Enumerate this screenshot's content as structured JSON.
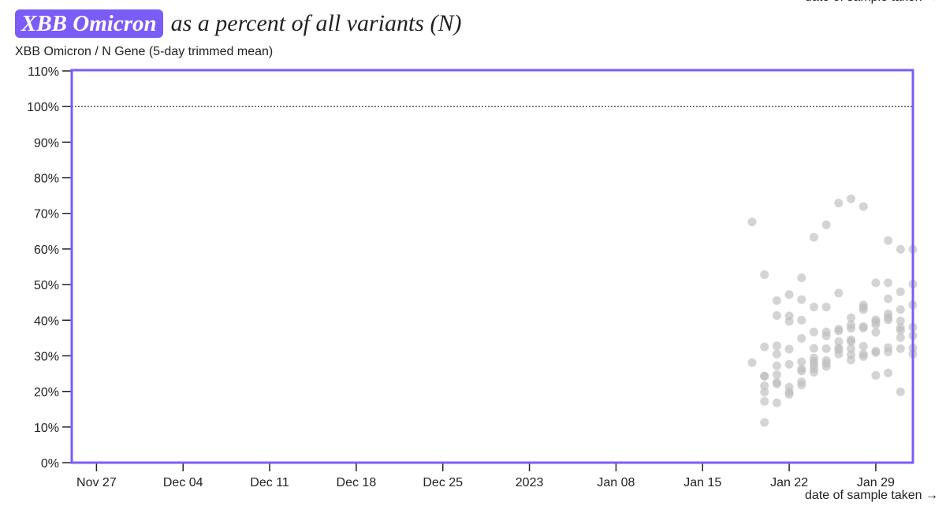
{
  "header": {
    "badge": "XBB Omicron",
    "title_rest": "as a percent of all variants (N)",
    "subtitle": "XBB Omicron / N Gene (5-day trimmed mean)"
  },
  "colors": {
    "accent": "#7c5cf6",
    "points": "#bdbdbd"
  },
  "chart_data": {
    "type": "scatter",
    "title": "XBB Omicron as a percent of all variants (N)",
    "ylabel": "XBB Omicron / N Gene (5-day trimmed mean)",
    "xlabel": "date of sample taken →",
    "ylim": [
      0,
      110
    ],
    "xlim": [
      "2022-11-25",
      "2023-02-01"
    ],
    "yticks": [
      0,
      10,
      20,
      30,
      40,
      50,
      60,
      70,
      80,
      90,
      100,
      110
    ],
    "ytick_labels": [
      "0%",
      "10%",
      "20%",
      "30%",
      "40%",
      "50%",
      "60%",
      "70%",
      "80%",
      "90%",
      "100%",
      "110%"
    ],
    "xticks": [
      "2022-11-27",
      "2022-12-04",
      "2022-12-11",
      "2022-12-18",
      "2022-12-25",
      "2023-01-01",
      "2023-01-08",
      "2023-01-15",
      "2023-01-22",
      "2023-01-29"
    ],
    "xtick_labels": [
      "Nov 27",
      "Dec 04",
      "Dec 11",
      "Dec 18",
      "Dec 25",
      "2023",
      "Jan 08",
      "Jan 15",
      "Jan 22",
      "Jan 29"
    ],
    "reference_line": {
      "y": 100,
      "style": "dotted"
    },
    "grid": false,
    "points": [
      {
        "x": "2023-01-19",
        "y": [
          67.6,
          28.1
        ]
      },
      {
        "x": "2023-01-20",
        "y": [
          52.8,
          32.5,
          24.3,
          24.3,
          21.6,
          19.8,
          17.2,
          11.3
        ]
      },
      {
        "x": "2023-01-21",
        "y": [
          45.5,
          41.3,
          32.8,
          30.5,
          27.2,
          24.7,
          22.5,
          22.1,
          16.8
        ]
      },
      {
        "x": "2023-01-22",
        "y": [
          47.2,
          41.2,
          39.7,
          31.9,
          27.6,
          21.2,
          19.8,
          19.2
        ]
      },
      {
        "x": "2023-01-23",
        "y": [
          51.9,
          45.8,
          40.0,
          34.9,
          28.3,
          26.3,
          25.7,
          22.7,
          21.8
        ]
      },
      {
        "x": "2023-01-24",
        "y": [
          63.3,
          43.7,
          36.7,
          32.1,
          29.4,
          28.4,
          27.5,
          26.4,
          25.4
        ]
      },
      {
        "x": "2023-01-25",
        "y": [
          66.8,
          43.7,
          36.7,
          35.6,
          32.0,
          28.7,
          27.9,
          27.0
        ]
      },
      {
        "x": "2023-01-26",
        "y": [
          72.9,
          47.6,
          37.5,
          37.0,
          34.0,
          32.2,
          31.7,
          30.5
        ]
      },
      {
        "x": "2023-01-27",
        "y": [
          74.1,
          40.7,
          38.7,
          37.7,
          34.5,
          34.0,
          32.0,
          30.3,
          28.8
        ]
      },
      {
        "x": "2023-01-28",
        "y": [
          71.9,
          44.3,
          43.6,
          43.0,
          38.2,
          37.8,
          32.7,
          30.5,
          29.8
        ]
      },
      {
        "x": "2023-01-29",
        "y": [
          50.5,
          40.1,
          39.6,
          38.8,
          36.6,
          31.3,
          30.9,
          24.5
        ]
      },
      {
        "x": "2023-01-30",
        "y": [
          62.4,
          50.5,
          46.0,
          41.8,
          40.8,
          40.1,
          32.3,
          31.1,
          25.2
        ]
      },
      {
        "x": "2023-01-31",
        "y": [
          59.9,
          48.0,
          43.0,
          39.8,
          37.9,
          37.1,
          35.1,
          32.0,
          19.9
        ]
      },
      {
        "x": "2023-02-01",
        "y": [
          59.9,
          50.1,
          44.3,
          38.0,
          35.7,
          32.2,
          30.5
        ]
      }
    ]
  }
}
